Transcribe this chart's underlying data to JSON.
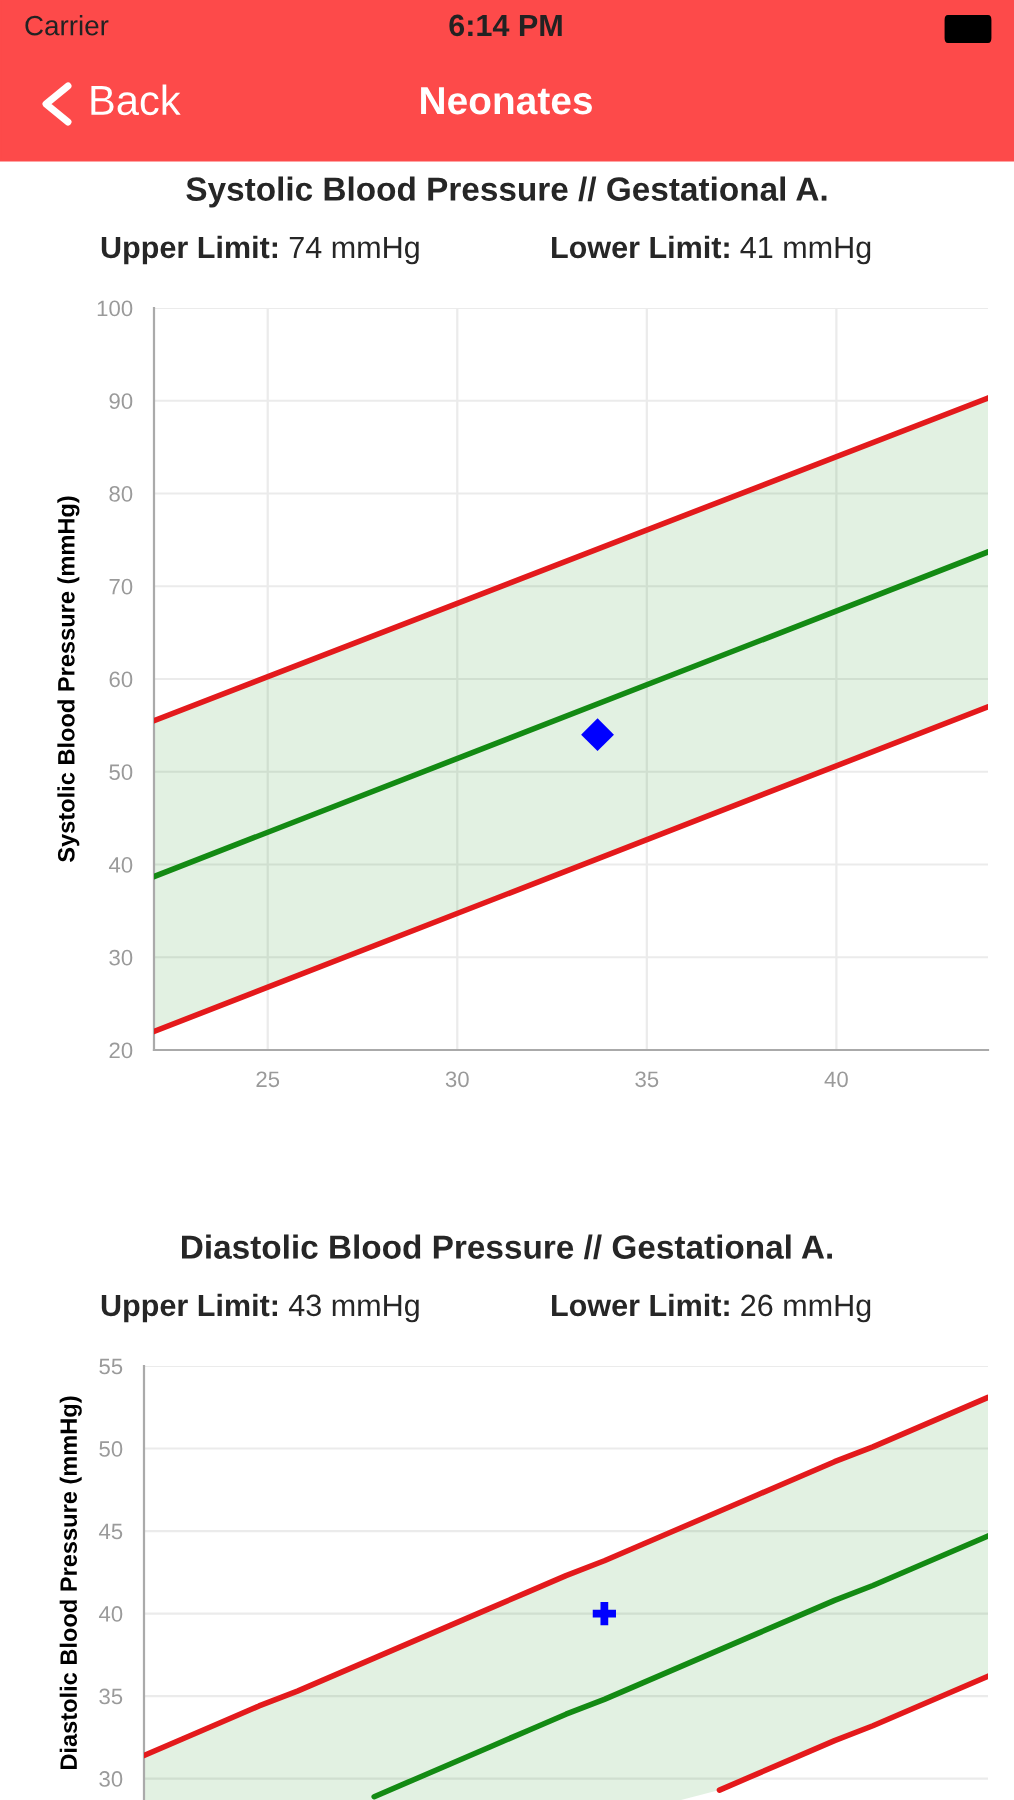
{
  "chart_data": [
    {
      "type": "line",
      "title": "Systolic Blood Pressure // Gestational A.",
      "ylabel": "Systolic Blood Pressure (mmHg)",
      "annotations": [
        "Carrier",
        "6:14 PM",
        "Back",
        "Neonates",
        "Upper Limit: 74 mmHg",
        "Lower Limit: 41 mmHg"
      ],
      "xlim": [
        22,
        44
      ],
      "xticks": [
        25,
        30,
        35,
        40
      ],
      "ylim": [
        20,
        100
      ],
      "yticks": [
        20,
        30,
        40,
        50,
        60,
        70,
        80,
        90,
        100
      ],
      "grid": true,
      "series": [
        {
          "color": "#e31a1c",
          "x": [
            22,
            44
          ],
          "values": [
            55.5,
            90.3
          ]
        },
        {
          "color": "#138a13",
          "x": [
            22,
            44
          ],
          "values": [
            38.7,
            73.7
          ],
          "lower": [
            22,
            57
          ],
          "upper": [
            55.5,
            90.3
          ]
        },
        {
          "color": "#e4191b",
          "x": [
            22,
            44
          ],
          "values": [
            22,
            57
          ]
        },
        {
          "type": "scatter",
          "color": "#0000ff",
          "marker": "diamond",
          "x": [
            33.7
          ],
          "values": [
            54
          ]
        }
      ]
    },
    {
      "type": "line",
      "title": "Diastolic Blood Pressure // Gestational A.",
      "ylabel": "Diastolic Blood Pressure (mmHg)",
      "annotations": [
        "Upper Limit: 43 mmHg",
        "Lower Limit: 26 mmHg"
      ],
      "tick_labels": "y",
      "categories": [
        null,
        null,
        null,
        null,
        null,
        null,
        null,
        null,
        null,
        null,
        null,
        null,
        null,
        null,
        null,
        null,
        null,
        null,
        null,
        null,
        null,
        null,
        null
      ],
      "ylim": [
        28.7,
        55
      ],
      "yticks": [
        30,
        35,
        40,
        45,
        50,
        55
      ],
      "grid": "y",
      "series": [
        {
          "color": "#e31a1c",
          "values": [
            31.4,
            32.4,
            33.4,
            34.4,
            35.3,
            36.3,
            37.3,
            38.3,
            39.3,
            40.3,
            41.3,
            42.3,
            43.2,
            44.2,
            45.2,
            46.2,
            47.2,
            48.2,
            49.2,
            50.1,
            51.1,
            52.1,
            53.1
          ]
        },
        {
          "color": "#138a13",
          "values": [
            null,
            null,
            null,
            null,
            null,
            null,
            28.9,
            29.9,
            30.9,
            31.9,
            32.9,
            33.9,
            34.8,
            35.8,
            36.8,
            37.8,
            38.8,
            39.8,
            40.8,
            41.7,
            42.7,
            43.7,
            44.7
          ],
          "lower": [
            28.7,
            28.7,
            28.7,
            28.7,
            28.7,
            28.7,
            28.7,
            28.7,
            28.7,
            28.7,
            28.7,
            28.7,
            28.7,
            28.7,
            28.7,
            29.3,
            30.3,
            31.3,
            32.3,
            33.2,
            34.2,
            35.2,
            36.2
          ],
          "upper": [
            31.4,
            32.4,
            33.4,
            34.4,
            35.3,
            36.3,
            37.3,
            38.3,
            39.3,
            40.3,
            41.3,
            42.3,
            43.2,
            44.2,
            45.2,
            46.2,
            47.2,
            48.2,
            49.2,
            50.1,
            51.1,
            52.1,
            53.1
          ]
        },
        {
          "color": "#e4191b",
          "values": [
            null,
            null,
            null,
            null,
            null,
            null,
            null,
            null,
            null,
            null,
            null,
            null,
            null,
            null,
            null,
            29.3,
            30.3,
            31.3,
            32.3,
            33.2,
            34.2,
            35.2,
            36.2
          ]
        },
        {
          "type": "scatter",
          "color": "#0000ff",
          "marker": "cross",
          "values": [
            null,
            null,
            null,
            null,
            null,
            null,
            null,
            null,
            null,
            null,
            null,
            null,
            40,
            null,
            null,
            null,
            null,
            null,
            null,
            null,
            null,
            null,
            null
          ]
        }
      ]
    }
  ]
}
